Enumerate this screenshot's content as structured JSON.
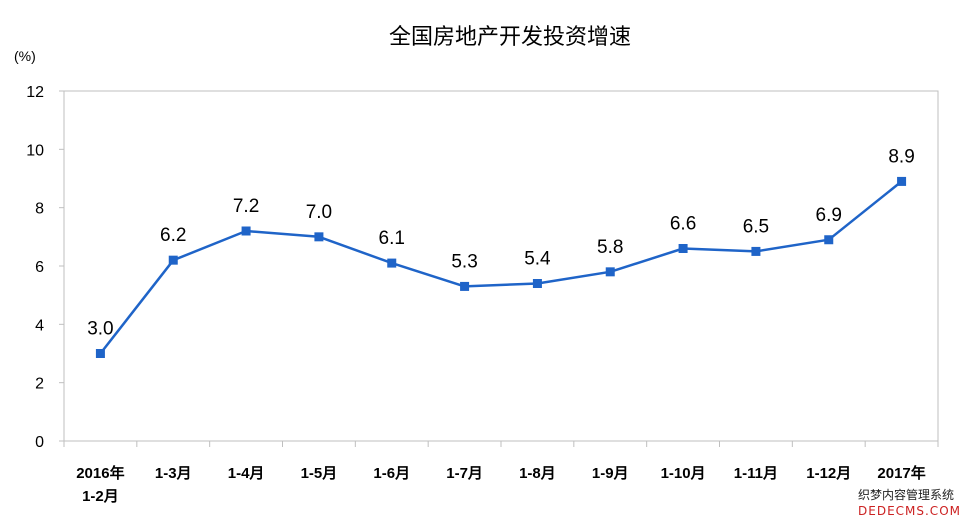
{
  "chart_data": {
    "type": "line",
    "title": "全国房地产开发投资增速",
    "xlabel": "",
    "ylabel": "(%)",
    "categories": [
      "2016年\n1-2月",
      "1-3月",
      "1-4月",
      "1-5月",
      "1-6月",
      "1-7月",
      "1-8月",
      "1-9月",
      "1-10月",
      "1-11月",
      "1-12月",
      "2017年"
    ],
    "values": [
      3.0,
      6.2,
      7.2,
      7.0,
      6.1,
      5.3,
      5.4,
      5.8,
      6.6,
      6.5,
      6.9,
      8.9
    ],
    "data_labels": [
      "3.0",
      "6.2",
      "7.2",
      "7.0",
      "6.1",
      "5.3",
      "5.4",
      "5.8",
      "6.6",
      "6.5",
      "6.9",
      "8.9"
    ],
    "ylim": [
      0,
      12
    ],
    "yticks": [
      0,
      2,
      4,
      6,
      8,
      10,
      12
    ],
    "grid": false,
    "color": "#1F64C8",
    "axis_color": "#BFBFBF"
  },
  "watermark": {
    "line1": "织梦内容管理系统",
    "line2": "DEDECMS.COM"
  }
}
